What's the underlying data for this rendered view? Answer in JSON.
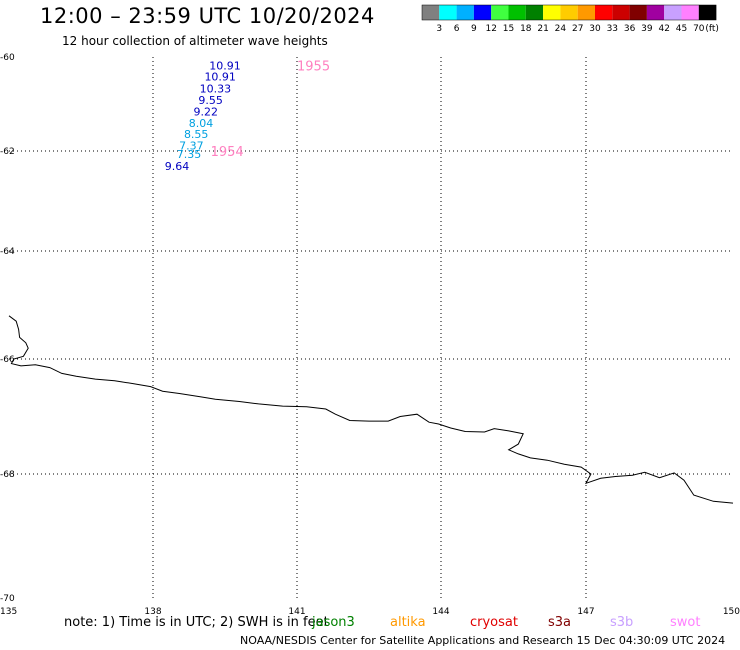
{
  "header": {
    "title": "12:00 – 23:59 UTC 10/20/2024",
    "subtitle": "12 hour collection of altimeter wave heights"
  },
  "legend": {
    "colors": [
      "#808080",
      "#00ffff",
      "#00b0ff",
      "#0000ff",
      "#40ff40",
      "#00c000",
      "#008000",
      "#ffff00",
      "#ffcc00",
      "#ff9900",
      "#ff0000",
      "#cc0000",
      "#800000",
      "#a000a0",
      "#c8a0ff",
      "#ff80ff",
      "#000000"
    ],
    "labels": [
      "3",
      "6",
      "9",
      "12",
      "15",
      "18",
      "21",
      "24",
      "27",
      "30",
      "33",
      "36",
      "39",
      "42",
      "45",
      "70"
    ],
    "unit": "(ft)"
  },
  "axes": {
    "lon_ticks": [
      {
        "value": 135,
        "label": "135"
      },
      {
        "value": 138,
        "label": "138"
      },
      {
        "value": 141,
        "label": "141"
      },
      {
        "value": 144,
        "label": "144"
      },
      {
        "value": 147,
        "label": "147"
      },
      {
        "value": 150,
        "label": "150"
      }
    ],
    "lat_ticks": [
      {
        "value": -60,
        "label": "-60"
      },
      {
        "value": -62,
        "label": "-62"
      },
      {
        "value": -64,
        "label": "-64"
      },
      {
        "value": -66,
        "label": "-66"
      },
      {
        "value": -68,
        "label": "-68"
      },
      {
        "value": -70,
        "label": "-70"
      }
    ]
  },
  "wave_labels": [
    {
      "lat": -60.18,
      "lon": 139.5,
      "text": "10.91",
      "color": "#0000c0"
    },
    {
      "lat": -60.42,
      "lon": 139.4,
      "text": "10.91",
      "color": "#0000c0"
    },
    {
      "lat": -60.67,
      "lon": 139.3,
      "text": "10.33",
      "color": "#0000c0"
    },
    {
      "lat": -60.91,
      "lon": 139.2,
      "text": "9.55",
      "color": "#0000c0"
    },
    {
      "lat": -61.16,
      "lon": 139.1,
      "text": "9.22",
      "color": "#0000c0"
    },
    {
      "lat": -61.4,
      "lon": 139.0,
      "text": "8.04",
      "color": "#00a0e0"
    },
    {
      "lat": -61.64,
      "lon": 138.9,
      "text": "8.55",
      "color": "#00a0e0"
    },
    {
      "lat": -61.88,
      "lon": 138.8,
      "text": "7.37",
      "color": "#00a0e0"
    },
    {
      "lat": -62.06,
      "lon": 138.75,
      "text": "7.35",
      "color": "#00a0e0"
    },
    {
      "lat": -62.3,
      "lon": 138.5,
      "text": "9.64",
      "color": "#0000c0"
    }
  ],
  "time_labels": [
    {
      "lat": -60.18,
      "lon": 141.0,
      "text": "1955",
      "color": "#ff80c0"
    },
    {
      "lat": -62.0,
      "lon": 139.2,
      "text": "1954",
      "color": "#ff80c0"
    }
  ],
  "coastline": [
    [
      135.0,
      -65.2
    ],
    [
      135.15,
      -65.3
    ],
    [
      135.2,
      -65.45
    ],
    [
      135.22,
      -65.6
    ],
    [
      135.35,
      -65.7
    ],
    [
      135.4,
      -65.8
    ],
    [
      135.3,
      -65.95
    ],
    [
      135.1,
      -66.0
    ],
    [
      135.05,
      -66.08
    ],
    [
      135.25,
      -66.12
    ],
    [
      135.55,
      -66.1
    ],
    [
      135.85,
      -66.15
    ],
    [
      136.1,
      -66.25
    ],
    [
      136.4,
      -66.3
    ],
    [
      136.8,
      -66.35
    ],
    [
      137.2,
      -66.38
    ],
    [
      137.6,
      -66.43
    ],
    [
      137.95,
      -66.48
    ],
    [
      138.2,
      -66.56
    ],
    [
      138.55,
      -66.6
    ],
    [
      139.0,
      -66.66
    ],
    [
      139.3,
      -66.7
    ],
    [
      139.8,
      -66.74
    ],
    [
      140.2,
      -66.78
    ],
    [
      140.7,
      -66.82
    ],
    [
      141.2,
      -66.83
    ],
    [
      141.6,
      -66.87
    ],
    [
      141.8,
      -66.96
    ],
    [
      142.1,
      -67.07
    ],
    [
      142.5,
      -67.08
    ],
    [
      142.9,
      -67.08
    ],
    [
      143.15,
      -67.0
    ],
    [
      143.5,
      -66.96
    ],
    [
      143.75,
      -67.1
    ],
    [
      143.95,
      -67.13
    ],
    [
      144.2,
      -67.2
    ],
    [
      144.5,
      -67.26
    ],
    [
      144.9,
      -67.27
    ],
    [
      145.1,
      -67.21
    ],
    [
      145.4,
      -67.25
    ],
    [
      145.7,
      -67.3
    ],
    [
      145.6,
      -67.48
    ],
    [
      145.4,
      -67.58
    ],
    [
      145.6,
      -67.65
    ],
    [
      145.85,
      -67.72
    ],
    [
      146.2,
      -67.76
    ],
    [
      146.55,
      -67.83
    ],
    [
      146.9,
      -67.88
    ],
    [
      147.1,
      -68.0
    ],
    [
      147.0,
      -68.15
    ],
    [
      147.3,
      -68.07
    ],
    [
      147.6,
      -68.04
    ],
    [
      147.95,
      -68.02
    ],
    [
      148.2,
      -67.97
    ],
    [
      148.5,
      -68.06
    ],
    [
      148.8,
      -67.98
    ],
    [
      149.0,
      -68.1
    ],
    [
      149.2,
      -68.34
    ],
    [
      149.6,
      -68.44
    ],
    [
      150.0,
      -68.47
    ]
  ],
  "footer": {
    "note_prefix": "note:  1) Time is in UTC; 2) SWH is in feet",
    "sat_jason3": "jason3",
    "sat_altika": "altika",
    "sat_cryosat": "cryosat",
    "sat_s3a": "s3a",
    "sat_s3b": "s3b",
    "sat_swot": "swot",
    "color_jason3": "#008000",
    "color_altika": "#ff9900",
    "color_cryosat": "#e00000",
    "color_s3a": "#800000",
    "color_s3b": "#c8a0ff",
    "color_swot": "#ff80ff",
    "credit": "NOAA/NESDIS Center for Satellite Applications and Research    15 Dec 04:30:09 UTC 2024"
  }
}
